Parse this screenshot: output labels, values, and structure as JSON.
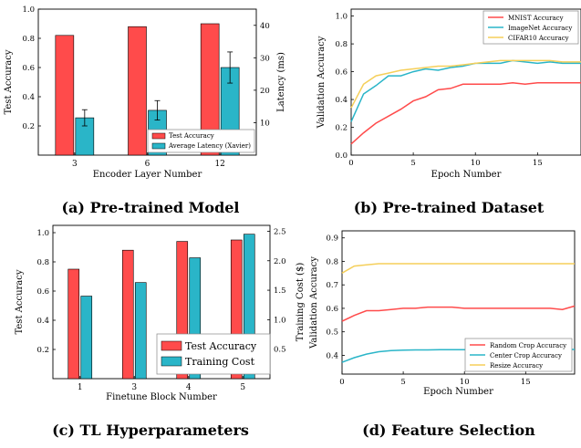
{
  "captions": {
    "a": "(a) Pre-trained Model",
    "b": "(b) Pre-trained Dataset",
    "c": "(c) TL Hyperparameters",
    "d": "(d) Feature Selection"
  },
  "colors": {
    "red": "#ff4b4b",
    "teal": "#2ab5c8",
    "yellow": "#f5cf5a"
  },
  "chart_data": [
    {
      "id": "a",
      "type": "bar",
      "categories": [
        "3",
        "6",
        "12"
      ],
      "xlabel": "Encoder Layer Number",
      "ylabel": "Test Accuracy",
      "ylabel_right": "Latency (ms)",
      "ylim": [
        0,
        1.0
      ],
      "ylim_right": [
        0,
        45
      ],
      "yticks": [
        0.2,
        0.4,
        0.6,
        0.8,
        1.0
      ],
      "yticks_right": [
        10,
        20,
        30,
        40
      ],
      "series": [
        {
          "name": "Test Accuracy",
          "axis": "left",
          "color": "#ff4b4b",
          "values": [
            0.82,
            0.88,
            0.9
          ]
        },
        {
          "name": "Average Latency (Xavier)",
          "axis": "right",
          "color": "#2ab5c8",
          "values": [
            11.5,
            13.8,
            27.0
          ],
          "errors": [
            2.5,
            3.0,
            4.8
          ]
        }
      ],
      "legend": "bottom-right"
    },
    {
      "id": "b",
      "type": "line",
      "xlabel": "Epoch Number",
      "ylabel": "Validation Accuracy",
      "xlim": [
        0,
        18.5
      ],
      "ylim": [
        0,
        1.05
      ],
      "xticks": [
        0,
        5,
        10,
        15
      ],
      "yticks": [
        0.0,
        0.2,
        0.4,
        0.6,
        0.8,
        1.0
      ],
      "series": [
        {
          "name": "MNIST Accuracy",
          "color": "#ff4b4b",
          "x": [
            0,
            1,
            2,
            3,
            4,
            5,
            6,
            7,
            8,
            9,
            10,
            11,
            12,
            13,
            14,
            15,
            16,
            17,
            18,
            18.5
          ],
          "y": [
            0.08,
            0.16,
            0.23,
            0.28,
            0.33,
            0.39,
            0.42,
            0.47,
            0.48,
            0.51,
            0.51,
            0.51,
            0.51,
            0.52,
            0.51,
            0.52,
            0.52,
            0.52,
            0.52,
            0.52
          ]
        },
        {
          "name": "ImageNet Accuracy",
          "color": "#2ab5c8",
          "x": [
            0,
            1,
            2,
            3,
            4,
            5,
            6,
            7,
            8,
            9,
            10,
            11,
            12,
            13,
            14,
            15,
            16,
            17,
            18,
            18.5
          ],
          "y": [
            0.24,
            0.44,
            0.5,
            0.57,
            0.57,
            0.6,
            0.62,
            0.61,
            0.63,
            0.64,
            0.66,
            0.66,
            0.66,
            0.68,
            0.67,
            0.66,
            0.67,
            0.66,
            0.66,
            0.66
          ]
        },
        {
          "name": "CIFAR10 Accuracy",
          "color": "#f5cf5a",
          "x": [
            0,
            1,
            2,
            3,
            4,
            5,
            6,
            7,
            8,
            9,
            10,
            11,
            12,
            13,
            14,
            15,
            16,
            17,
            18,
            18.5
          ],
          "y": [
            0.34,
            0.51,
            0.57,
            0.59,
            0.61,
            0.62,
            0.63,
            0.64,
            0.64,
            0.65,
            0.66,
            0.67,
            0.68,
            0.68,
            0.68,
            0.68,
            0.68,
            0.67,
            0.67,
            0.67
          ]
        }
      ],
      "legend": "top-right"
    },
    {
      "id": "c",
      "type": "bar",
      "categories": [
        "1",
        "3",
        "4",
        "5"
      ],
      "xlabel": "Finetune Block Number",
      "ylabel": "Test Accuracy",
      "ylabel_right": "Training Cost ($)",
      "ylim": [
        0,
        1.05
      ],
      "ylim_right": [
        0,
        2.6
      ],
      "yticks": [
        0.2,
        0.4,
        0.6,
        0.8,
        1.0
      ],
      "yticks_right": [
        0.5,
        1.0,
        1.5,
        2.0,
        2.5
      ],
      "series": [
        {
          "name": "Test Accuracy",
          "axis": "left",
          "color": "#ff4b4b",
          "values": [
            0.75,
            0.88,
            0.94,
            0.95
          ]
        },
        {
          "name": "Training Cost",
          "axis": "right",
          "color": "#2ab5c8",
          "values": [
            1.4,
            1.63,
            2.05,
            2.45
          ]
        }
      ],
      "legend": "bottom-right"
    },
    {
      "id": "d",
      "type": "line",
      "xlabel": "Epoch Number",
      "ylabel": "Validation Accuracy",
      "xlim": [
        0,
        19
      ],
      "ylim": [
        0.32,
        0.93
      ],
      "xticks": [
        0,
        5,
        10,
        15
      ],
      "yticks": [
        0.4,
        0.5,
        0.6,
        0.7,
        0.8,
        0.9
      ],
      "series": [
        {
          "name": "Random Crop Accuracy",
          "color": "#ff4b4b",
          "x": [
            0,
            1,
            2,
            3,
            4,
            5,
            6,
            7,
            8,
            9,
            10,
            11,
            12,
            13,
            14,
            15,
            16,
            17,
            18,
            19
          ],
          "y": [
            0.545,
            0.57,
            0.59,
            0.59,
            0.595,
            0.6,
            0.6,
            0.605,
            0.605,
            0.605,
            0.6,
            0.6,
            0.6,
            0.6,
            0.6,
            0.6,
            0.6,
            0.6,
            0.595,
            0.61
          ]
        },
        {
          "name": "Center Crop Accuracy",
          "color": "#2ab5c8",
          "x": [
            0,
            1,
            2,
            3,
            4,
            5,
            6,
            7,
            8,
            9,
            10,
            11,
            12,
            13,
            14,
            15,
            16,
            17,
            18,
            19
          ],
          "y": [
            0.37,
            0.39,
            0.405,
            0.415,
            0.42,
            0.422,
            0.423,
            0.423,
            0.424,
            0.424,
            0.424,
            0.425,
            0.425,
            0.425,
            0.425,
            0.425,
            0.425,
            0.425,
            0.425,
            0.425
          ]
        },
        {
          "name": "Resize Accuracy",
          "color": "#f5cf5a",
          "x": [
            0,
            1,
            2,
            3,
            4,
            5,
            6,
            7,
            8,
            9,
            10,
            11,
            12,
            13,
            14,
            15,
            16,
            17,
            18,
            19
          ],
          "y": [
            0.75,
            0.78,
            0.785,
            0.79,
            0.79,
            0.79,
            0.79,
            0.79,
            0.79,
            0.79,
            0.79,
            0.79,
            0.79,
            0.79,
            0.79,
            0.79,
            0.79,
            0.79,
            0.79,
            0.79
          ]
        }
      ],
      "legend": "bottom-right"
    }
  ]
}
